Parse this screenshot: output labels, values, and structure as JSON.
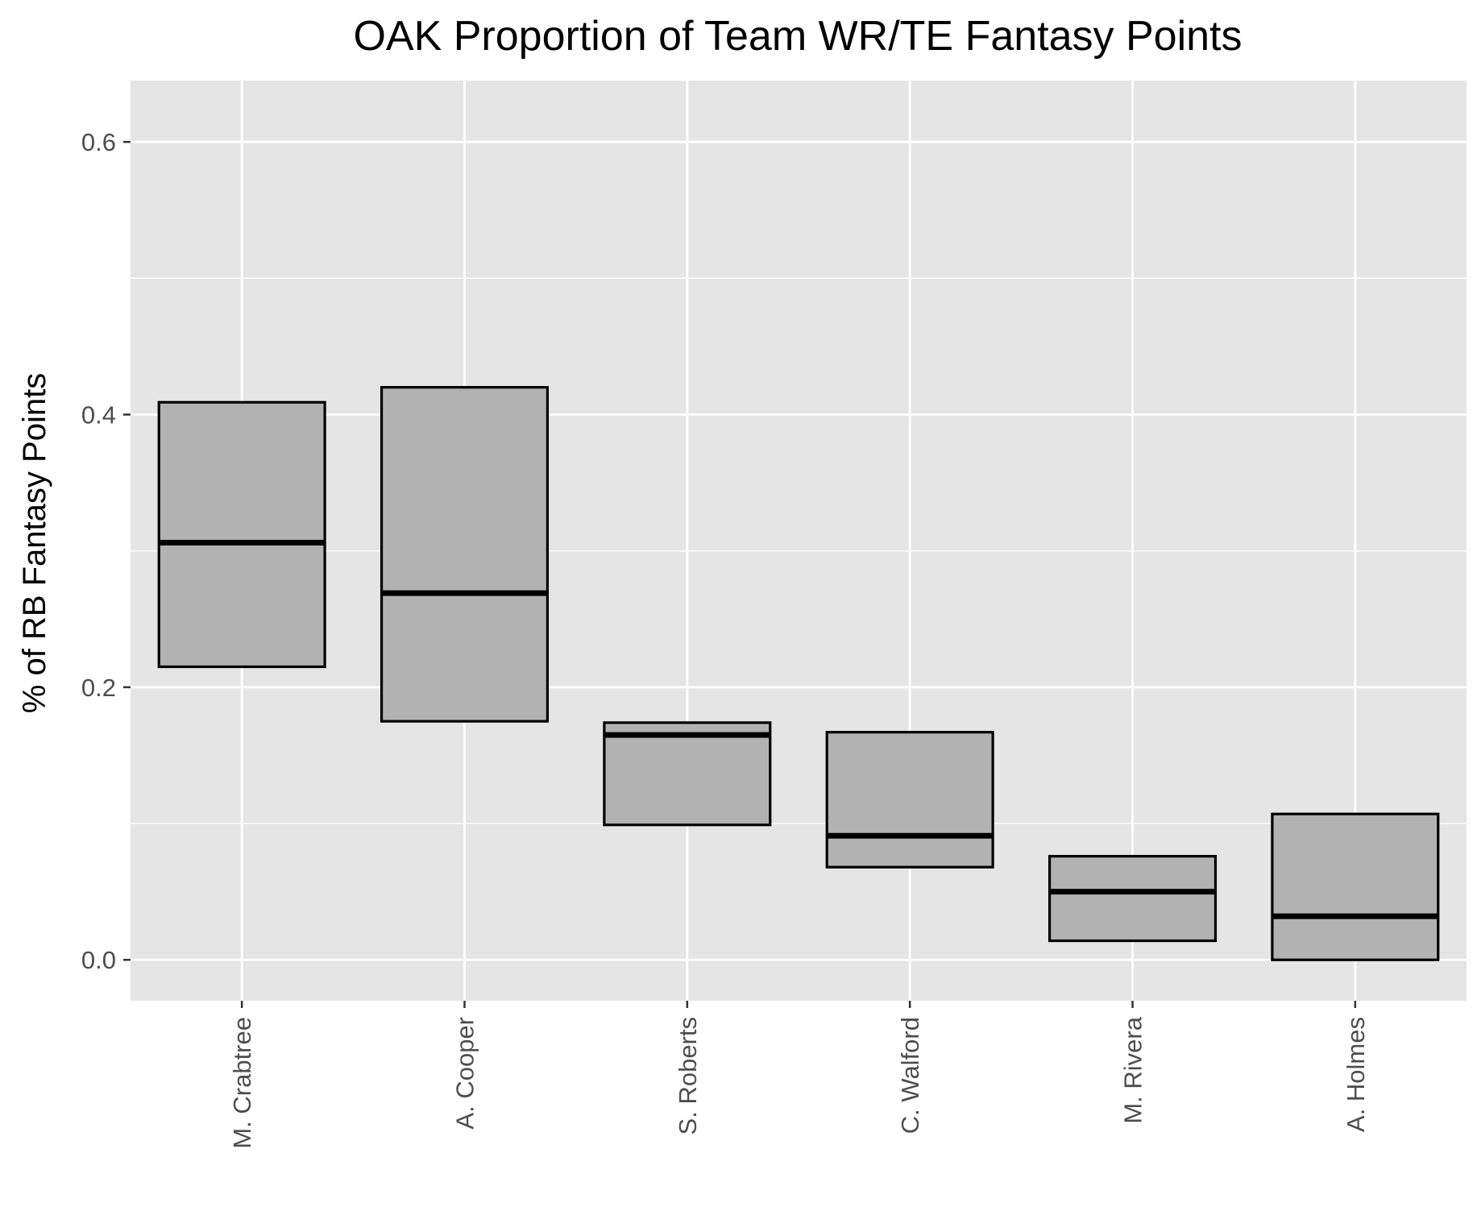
{
  "chart_data": {
    "type": "boxplot",
    "title": "OAK Proportion of Team WR/TE Fantasy Points",
    "xlabel": "",
    "ylabel": "% of RB Fantasy Points",
    "ylim": [
      -0.03,
      0.645
    ],
    "yticks": [
      0.0,
      0.2,
      0.4,
      0.6
    ],
    "ytick_labels": [
      "0.0",
      "0.2",
      "0.4",
      "0.6"
    ],
    "grid": true,
    "categories": [
      "M. Crabtree",
      "A. Cooper",
      "S. Roberts",
      "C. Walford",
      "M. Rivera",
      "A. Holmes"
    ],
    "boxes": [
      {
        "category": "M. Crabtree",
        "q1": 0.215,
        "median": 0.306,
        "q3": 0.409
      },
      {
        "category": "A. Cooper",
        "q1": 0.175,
        "median": 0.269,
        "q3": 0.42
      },
      {
        "category": "S. Roberts",
        "q1": 0.099,
        "median": 0.165,
        "q3": 0.174
      },
      {
        "category": "C. Walford",
        "q1": 0.068,
        "median": 0.091,
        "q3": 0.167
      },
      {
        "category": "M. Rivera",
        "q1": 0.014,
        "median": 0.05,
        "q3": 0.076
      },
      {
        "category": "A. Holmes",
        "q1": 0.0,
        "median": 0.032,
        "q3": 0.107
      }
    ],
    "colors": {
      "panel_background": "#e5e5e5",
      "grid": "#ffffff",
      "box_fill": "#b2b2b2",
      "box_stroke": "#000000",
      "tick_text": "#4d4d4d",
      "tick_mark": "#333333"
    }
  }
}
